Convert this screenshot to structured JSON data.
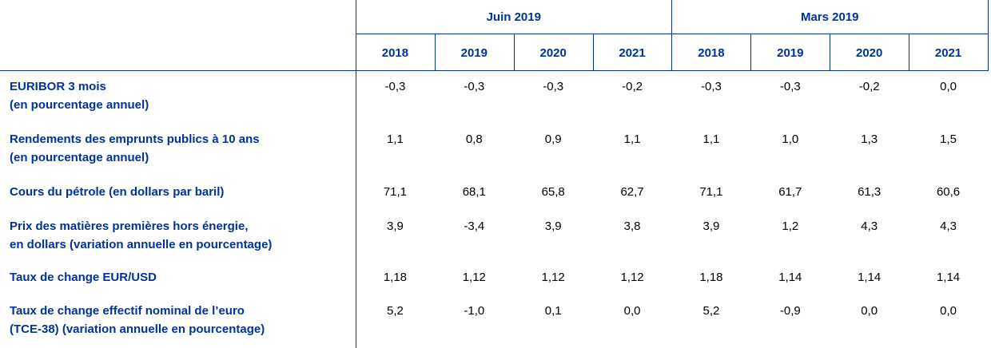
{
  "table": {
    "groups": [
      "Juin 2019",
      "Mars 2019"
    ],
    "years": [
      "2018",
      "2019",
      "2020",
      "2021",
      "2018",
      "2019",
      "2020",
      "2021"
    ],
    "rows": [
      {
        "label": [
          "EURIBOR 3 mois",
          "(en pourcentage annuel)"
        ],
        "values": [
          "-0,3",
          "-0,3",
          "-0,3",
          "-0,2",
          "-0,3",
          "-0,3",
          "-0,2",
          "0,0"
        ]
      },
      {
        "label": [
          "Rendements des emprunts publics à 10 ans",
          "(en pourcentage annuel)"
        ],
        "values": [
          "1,1",
          "0,8",
          "0,9",
          "1,1",
          "1,1",
          "1,0",
          "1,3",
          "1,5"
        ]
      },
      {
        "label": [
          "Cours du pétrole (en dollars par baril)"
        ],
        "values": [
          "71,1",
          "68,1",
          "65,8",
          "62,7",
          "71,1",
          "61,7",
          "61,3",
          "60,6"
        ]
      },
      {
        "label": [
          "Prix des matières premières hors énergie,",
          "en dollars (variation annuelle en pourcentage)"
        ],
        "values": [
          "3,9",
          "-3,4",
          "3,9",
          "3,8",
          "3,9",
          "1,2",
          "4,3",
          "4,3"
        ]
      },
      {
        "label": [
          "Taux de change EUR/USD"
        ],
        "values": [
          "1,18",
          "1,12",
          "1,12",
          "1,12",
          "1,18",
          "1,14",
          "1,14",
          "1,14"
        ]
      },
      {
        "label": [
          "Taux de change effectif nominal de l’euro",
          "(TCE-38) (variation annuelle en pourcentage)"
        ],
        "values": [
          "5,2",
          "-1,0",
          "0,1",
          "0,0",
          "5,2",
          "-0,9",
          "0,0",
          "0,0"
        ]
      }
    ]
  }
}
